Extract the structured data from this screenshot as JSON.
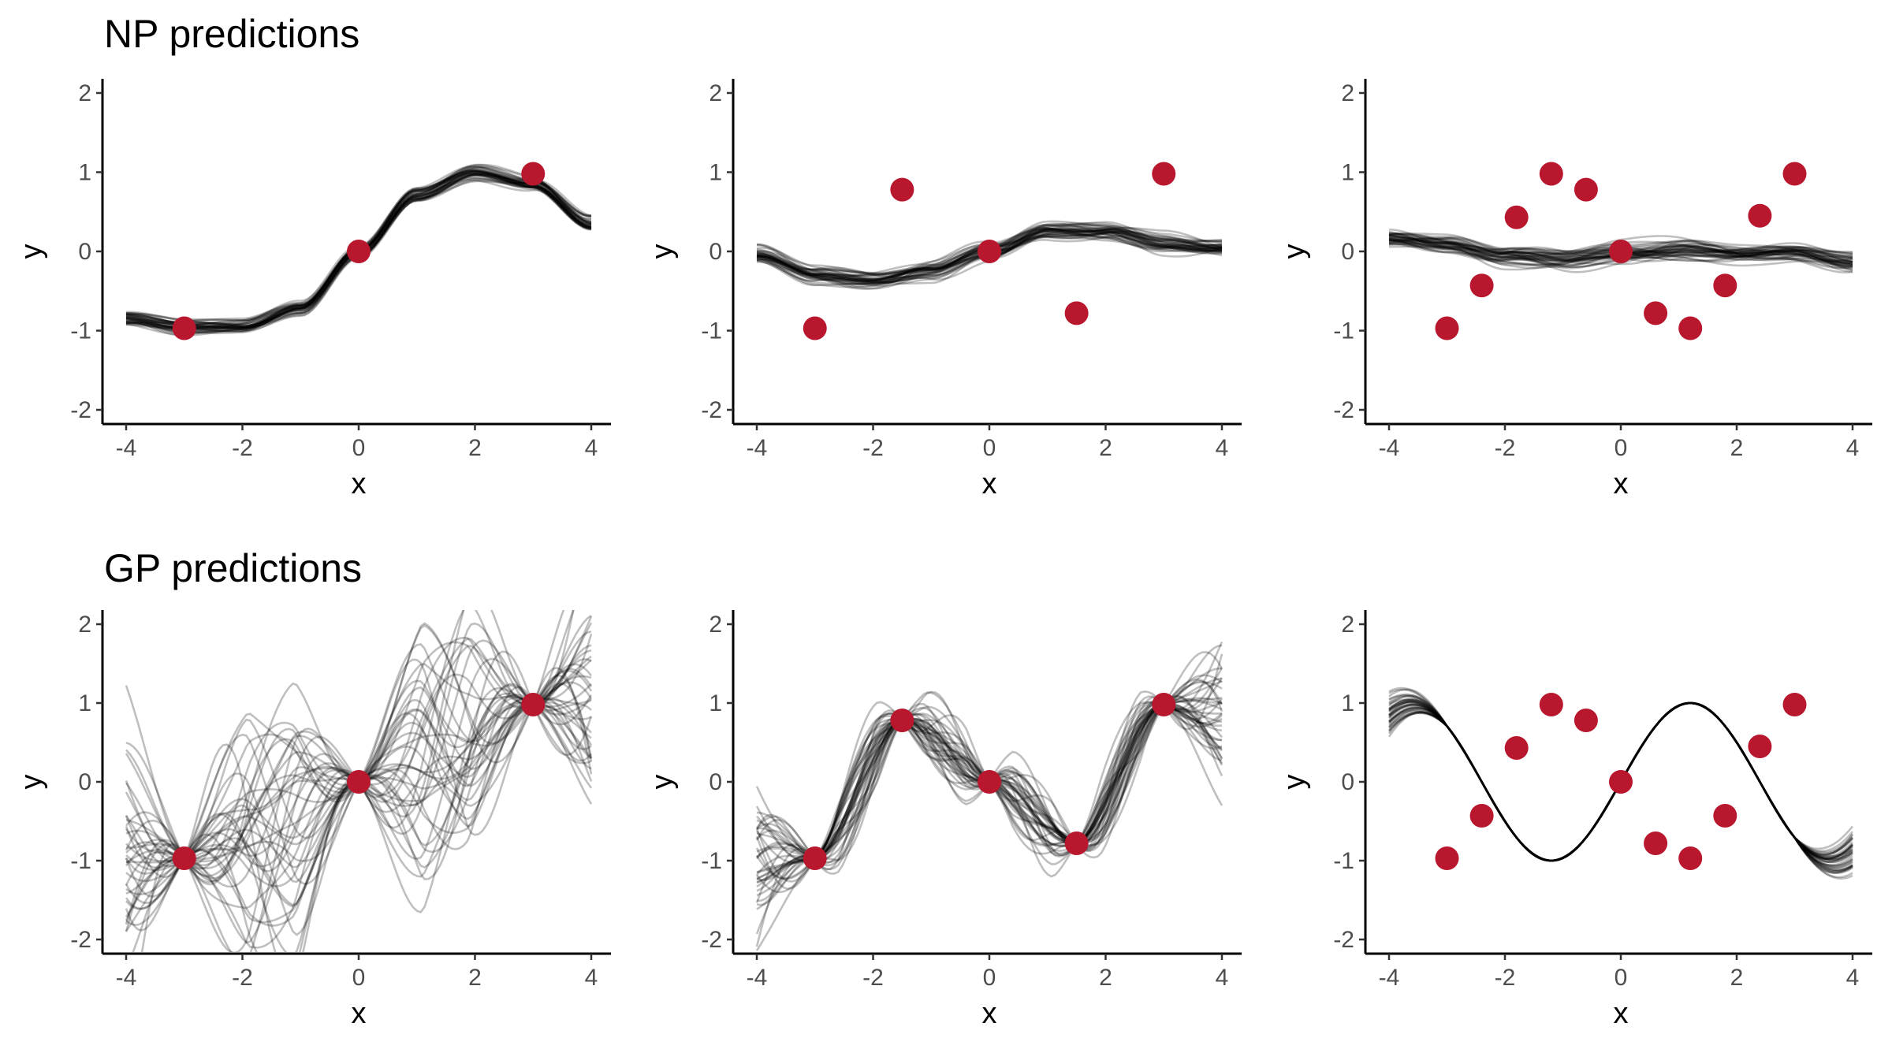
{
  "figure": {
    "row_titles": [
      "NP predictions",
      "GP predictions"
    ],
    "point_color": "#b8172e",
    "line_color": "#000000"
  },
  "chart_data": [
    {
      "type": "line",
      "title": "NP predictions",
      "xlabel": "x",
      "ylabel": "y",
      "xlim": [
        -4,
        4
      ],
      "ylim": [
        -2,
        2
      ],
      "xticks": [
        -4,
        -2,
        0,
        2,
        4
      ],
      "yticks": [
        -2,
        -1,
        0,
        1,
        2
      ],
      "grid": false,
      "context_points": {
        "x": [
          -3,
          0,
          3
        ],
        "y": [
          -0.97,
          0.0,
          0.98
        ]
      },
      "samples": {
        "count": 40,
        "x": [
          -4,
          -3,
          -2,
          -1,
          0,
          1,
          2,
          3,
          4
        ],
        "mean": [
          -0.85,
          -0.95,
          -0.95,
          -0.72,
          0.0,
          0.72,
          1.0,
          0.85,
          0.35
        ],
        "spread": 0.08
      }
    },
    {
      "type": "line",
      "title": "",
      "xlabel": "x",
      "ylabel": "y",
      "xlim": [
        -4,
        4
      ],
      "ylim": [
        -2,
        2
      ],
      "xticks": [
        -4,
        -2,
        0,
        2,
        4
      ],
      "yticks": [
        -2,
        -1,
        0,
        1,
        2
      ],
      "grid": false,
      "context_points": {
        "x": [
          -3,
          -1.5,
          0,
          1.5,
          3
        ],
        "y": [
          -0.97,
          0.78,
          0.0,
          -0.78,
          0.98
        ]
      },
      "samples": {
        "count": 40,
        "x": [
          -4,
          -3,
          -2,
          -1,
          0,
          1,
          2,
          3,
          4
        ],
        "mean": [
          -0.05,
          -0.3,
          -0.35,
          -0.25,
          0.0,
          0.28,
          0.25,
          0.1,
          0.05
        ],
        "spread": 0.1
      }
    },
    {
      "type": "line",
      "title": "",
      "xlabel": "x",
      "ylabel": "y",
      "xlim": [
        -4,
        4
      ],
      "ylim": [
        -2,
        2
      ],
      "xticks": [
        -4,
        -2,
        0,
        2,
        4
      ],
      "yticks": [
        -2,
        -1,
        0,
        1,
        2
      ],
      "grid": false,
      "context_points": {
        "x": [
          -3,
          -2.4,
          -1.8,
          -1.2,
          -0.6,
          0,
          0.6,
          1.2,
          1.8,
          2.4,
          3
        ],
        "y": [
          -0.97,
          -0.43,
          0.43,
          0.98,
          0.78,
          0.0,
          -0.78,
          -0.97,
          -0.43,
          0.45,
          0.98
        ]
      },
      "samples": {
        "count": 40,
        "x": [
          -4,
          -3,
          -2,
          -1,
          0,
          1,
          2,
          3,
          4
        ],
        "mean": [
          0.15,
          0.1,
          -0.05,
          -0.1,
          0.0,
          0.02,
          -0.05,
          0.0,
          -0.12
        ],
        "spread": 0.1
      }
    },
    {
      "type": "line",
      "title": "GP predictions",
      "xlabel": "x",
      "ylabel": "y",
      "xlim": [
        -4,
        4
      ],
      "ylim": [
        -2,
        2
      ],
      "xticks": [
        -4,
        -2,
        0,
        2,
        4
      ],
      "yticks": [
        -2,
        -1,
        0,
        1,
        2
      ],
      "grid": false,
      "context_points": {
        "x": [
          -3,
          0,
          3
        ],
        "y": [
          -0.97,
          0.0,
          0.98
        ]
      },
      "samples": {
        "count": 40,
        "amplitude": 0.9
      }
    },
    {
      "type": "line",
      "title": "",
      "xlabel": "x",
      "ylabel": "y",
      "xlim": [
        -4,
        4
      ],
      "ylim": [
        -2,
        2
      ],
      "xticks": [
        -4,
        -2,
        0,
        2,
        4
      ],
      "yticks": [
        -2,
        -1,
        0,
        1,
        2
      ],
      "grid": false,
      "context_points": {
        "x": [
          -3,
          -1.5,
          0,
          1.5,
          3
        ],
        "y": [
          -0.97,
          0.78,
          0.0,
          -0.78,
          0.98
        ]
      },
      "samples": {
        "count": 40,
        "amplitude": 0.65
      }
    },
    {
      "type": "line",
      "title": "",
      "xlabel": "x",
      "ylabel": "y",
      "xlim": [
        -4,
        4
      ],
      "ylim": [
        -2,
        2
      ],
      "xticks": [
        -4,
        -2,
        0,
        2,
        4
      ],
      "yticks": [
        -2,
        -1,
        0,
        1,
        2
      ],
      "grid": false,
      "context_points": {
        "x": [
          -3,
          -2.4,
          -1.8,
          -1.2,
          -0.6,
          0,
          0.6,
          1.2,
          1.8,
          2.4,
          3
        ],
        "y": [
          -0.97,
          -0.43,
          0.43,
          0.98,
          0.78,
          0.0,
          -0.78,
          -0.97,
          -0.43,
          0.45,
          0.98
        ]
      },
      "samples": {
        "count": 40,
        "amplitude": 0.05,
        "edge_amplitude": 0.25
      }
    }
  ]
}
